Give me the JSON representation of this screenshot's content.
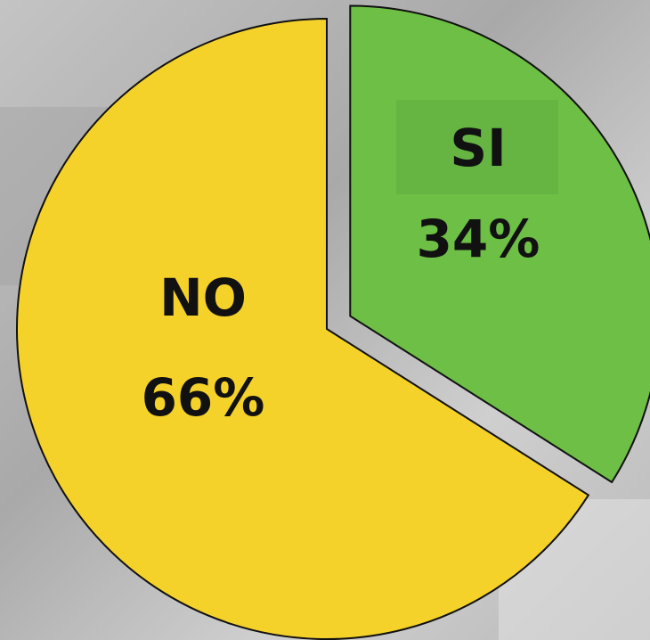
{
  "chart_data": {
    "type": "pie",
    "categories": [
      "SI",
      "NO"
    ],
    "values": [
      34,
      66
    ],
    "value_labels": [
      "34%",
      "66%"
    ],
    "colors": [
      "#6dbf45",
      "#f5d22a"
    ]
  }
}
